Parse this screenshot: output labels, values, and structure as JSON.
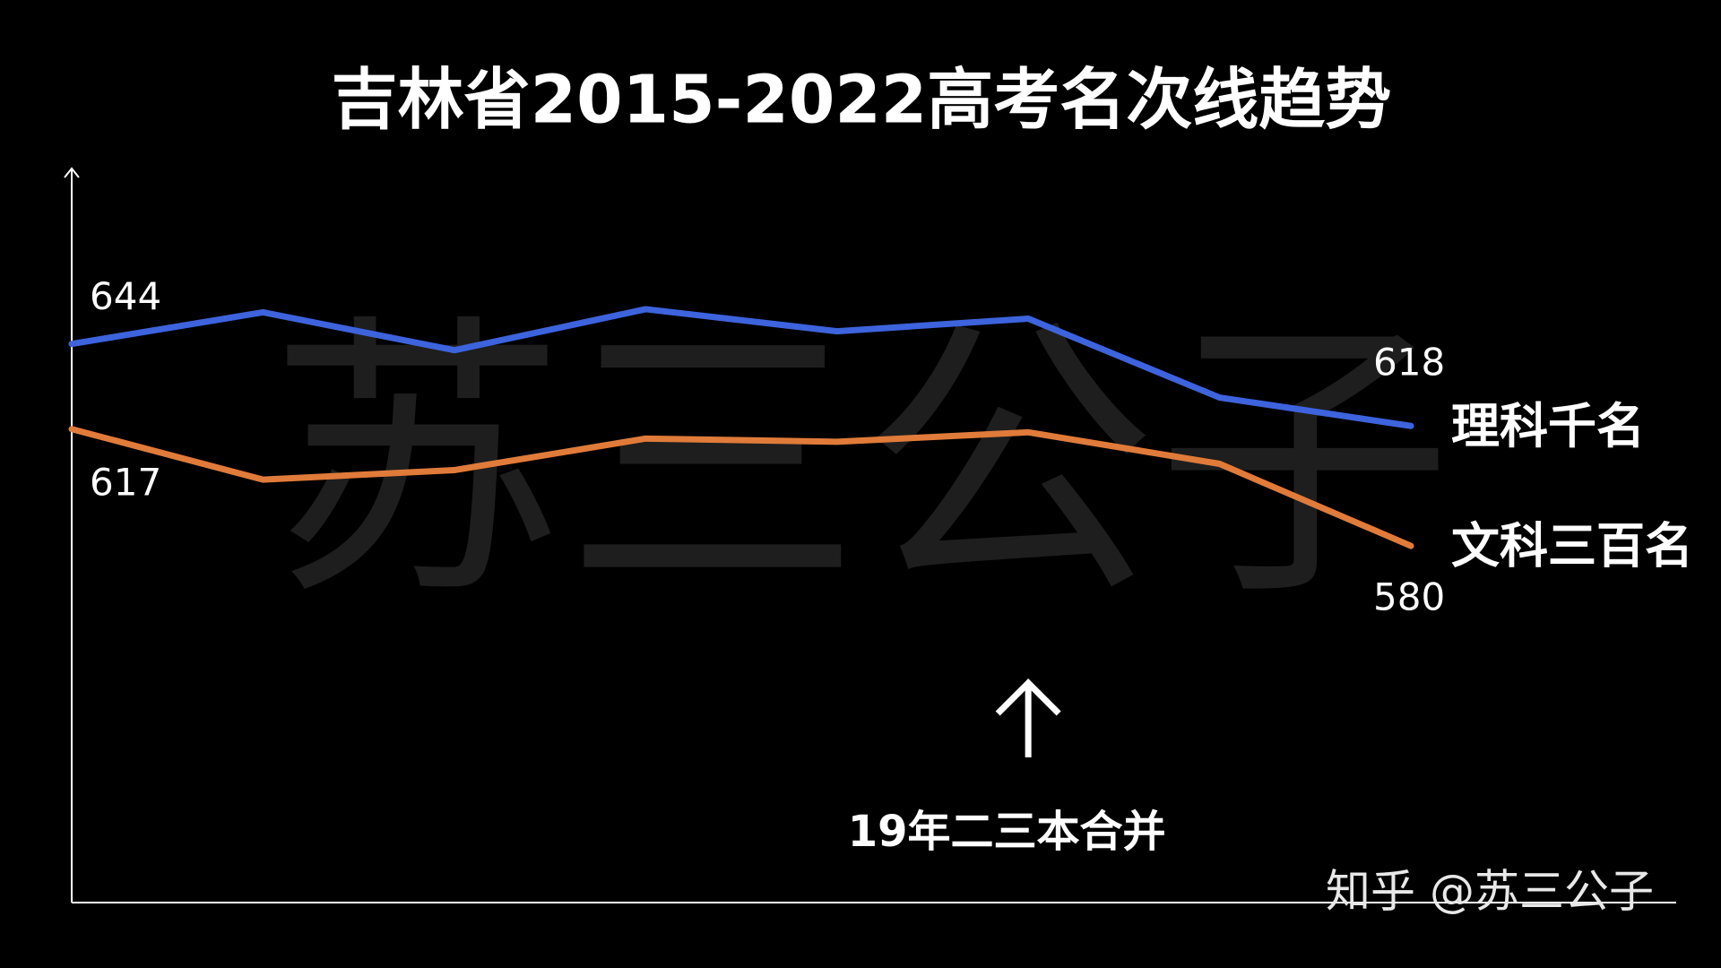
{
  "chart_data": {
    "type": "line",
    "title": "吉林省2015-2022高考名次线趋势",
    "categories": [
      null,
      null,
      null,
      null,
      null,
      null,
      null,
      null
    ],
    "series": [
      {
        "name": "理科千名",
        "color": "#3d63dd",
        "values": [
          644,
          654,
          642,
          655,
          648,
          652,
          627,
          618
        ]
      },
      {
        "name": "文科三百名",
        "color": "#e07b3a",
        "values": [
          617,
          601,
          604,
          614,
          613,
          616,
          606,
          580
        ]
      }
    ],
    "ylim": [
      467,
      699
    ],
    "annotation": "19年二三本合并",
    "watermark": "苏三公子",
    "credit": "知乎 @苏三公子"
  }
}
